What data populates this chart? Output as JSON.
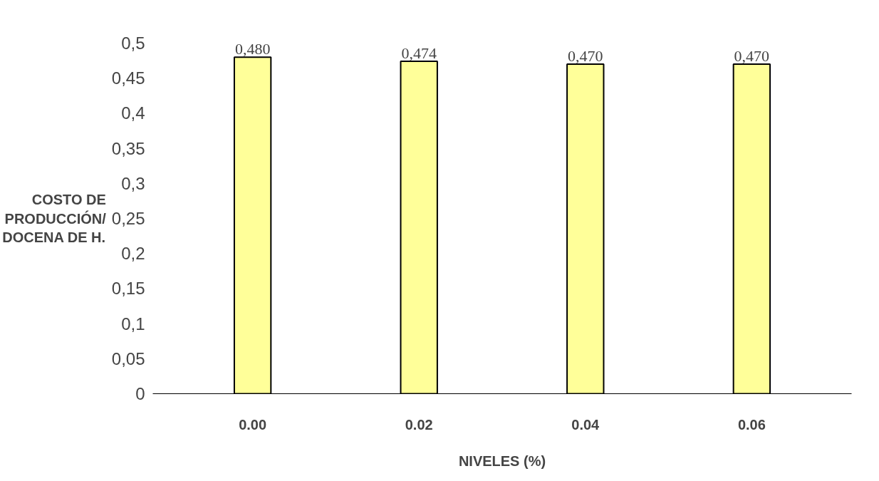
{
  "chart_data": {
    "type": "bar",
    "ylabel": "COSTO DE\nPRODUCCIÓN/\nDOCENA DE H.",
    "xlabel": "NIVELES (%)",
    "categories": [
      "0.00",
      "0.02",
      "0.04",
      "0.06"
    ],
    "values": [
      0.48,
      0.474,
      0.47,
      0.47
    ],
    "value_labels": [
      "0,480",
      "0,474",
      "0,470",
      "0,470"
    ],
    "color": "#ffff99",
    "ylim": [
      0,
      0.5
    ],
    "yticks": [
      0,
      {
        "value": 0.05,
        "label": "0,05"
      },
      {
        "value": 0.1,
        "label": "0,1"
      },
      {
        "value": 0.15,
        "label": "0,15"
      },
      {
        "value": 0.2,
        "label": "0,2"
      },
      {
        "value": 0.25,
        "label": "0,25"
      },
      {
        "value": 0.3,
        "label": "0,3"
      },
      {
        "value": 0.35,
        "label": "0,35"
      },
      {
        "value": 0.4,
        "label": "0,4"
      },
      {
        "value": 0.45,
        "label": "0,45"
      },
      {
        "value": 0.5,
        "label": "0,5"
      }
    ],
    "grid": false
  }
}
